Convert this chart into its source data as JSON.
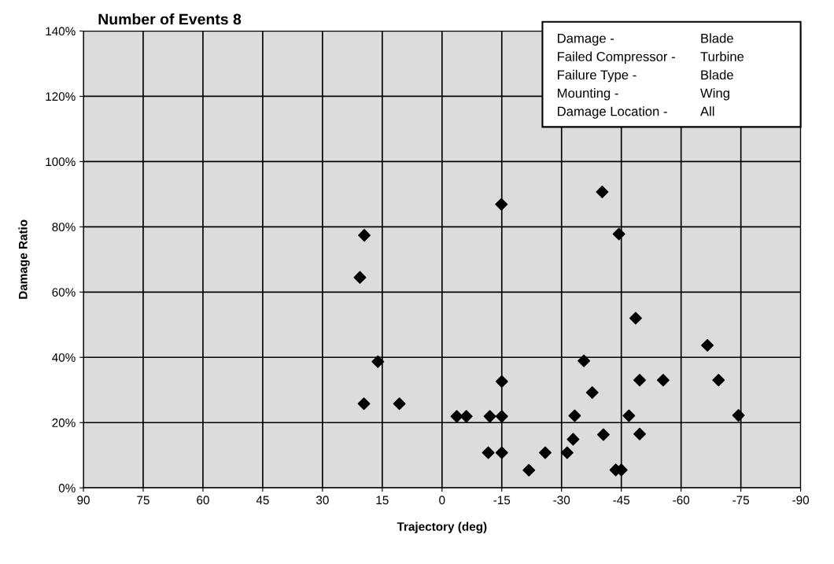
{
  "chart_data": {
    "type": "scatter",
    "title": "Number of Events 8",
    "xlabel": "Trajectory (deg)",
    "ylabel": "Damage Ratio",
    "annotations": [
      "Damage -",
      "Blade",
      "Failed Compressor -",
      "Turbine",
      "Failure Type -",
      "Blade",
      "Mounting -",
      "Wing",
      "Damage Location -",
      "All"
    ],
    "series": [
      {
        "color": "#000000",
        "x": [
          20.6,
          16.1,
          19.6,
          10.7,
          -3.7,
          -6.1,
          -12.0,
          -15.0,
          -15.0,
          -11.6,
          -15.0,
          -21.8,
          -25.9,
          -31.4,
          -32.9,
          -33.3,
          -35.6,
          -37.7,
          -40.5,
          -43.6,
          -45.0,
          -46.9,
          19.5,
          -14.9,
          -40.2,
          -44.4,
          -48.6,
          -66.6,
          -49.6,
          -55.5,
          -69.4,
          -74.4,
          -49.6
        ],
        "values": [
          64.5,
          38.7,
          25.8,
          25.8,
          21.9,
          21.9,
          21.9,
          21.9,
          32.6,
          10.8,
          10.8,
          5.4,
          10.8,
          10.8,
          14.9,
          22.1,
          38.9,
          29.2,
          16.3,
          5.5,
          5.5,
          22.1,
          77.4,
          86.9,
          90.7,
          77.8,
          52.0,
          43.7,
          33.0,
          33.0,
          33.0,
          22.2,
          16.5
        ]
      }
    ],
    "marker": "diamond",
    "grid": true,
    "xlim": [
      90,
      -90
    ],
    "xticks": [
      90,
      75,
      60,
      45,
      30,
      15,
      0,
      -15,
      -30,
      -45,
      -60,
      -75,
      -90
    ],
    "ylim": [
      0,
      140
    ],
    "yticks": [
      {
        "value": 0,
        "label": "0%"
      },
      {
        "value": 20,
        "label": "20%"
      },
      {
        "value": 40,
        "label": "40%"
      },
      {
        "value": 60,
        "label": "60%"
      },
      {
        "value": 80,
        "label": "80%"
      },
      {
        "value": 100,
        "label": "100%"
      },
      {
        "value": 120,
        "label": "120%"
      },
      {
        "value": 140,
        "label": "140%"
      }
    ]
  }
}
